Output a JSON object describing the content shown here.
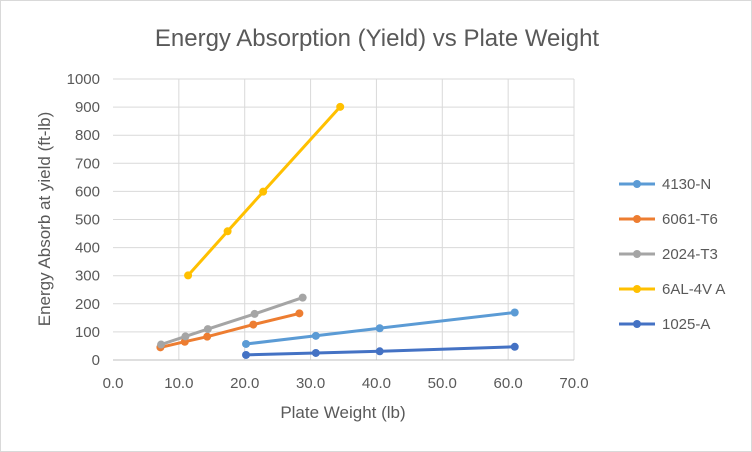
{
  "chart_data": {
    "type": "line",
    "title": "Energy Absorption (Yield) vs Plate Weight",
    "xlabel": "Plate Weight (lb)",
    "ylabel": "Energy Absorb at yield (ft-lb)",
    "xlim": [
      0,
      70
    ],
    "ylim": [
      0,
      1000
    ],
    "x_ticks": [
      0,
      10,
      20,
      30,
      40,
      50,
      60,
      70
    ],
    "x_tick_labels": [
      "0.0",
      "10.0",
      "20.0",
      "30.0",
      "40.0",
      "50.0",
      "60.0",
      "70.0"
    ],
    "y_ticks": [
      0,
      100,
      200,
      300,
      400,
      500,
      600,
      700,
      800,
      900,
      1000
    ],
    "y_tick_labels": [
      "0",
      "100",
      "200",
      "300",
      "400",
      "500",
      "600",
      "700",
      "800",
      "900",
      "1000"
    ],
    "grid": true,
    "legend_position": "right",
    "series": [
      {
        "name": "4130-N",
        "color": "#5b9bd5",
        "x": [
          20.2,
          30.8,
          40.5,
          61.0
        ],
        "y": [
          57,
          86,
          113,
          169
        ]
      },
      {
        "name": "6061-T6",
        "color": "#ed7d31",
        "x": [
          7.2,
          10.9,
          14.3,
          21.3,
          28.3
        ],
        "y": [
          45,
          65,
          83,
          126,
          166
        ]
      },
      {
        "name": "2024-T3",
        "color": "#a5a5a5",
        "x": [
          7.3,
          11.0,
          14.4,
          21.5,
          28.8
        ],
        "y": [
          55,
          84,
          110,
          164,
          222
        ]
      },
      {
        "name": "6AL-4V A",
        "color": "#ffc000",
        "x": [
          11.4,
          17.4,
          22.8,
          34.5
        ],
        "y": [
          301,
          458,
          599,
          901
        ]
      },
      {
        "name": "1025-A",
        "color": "#4472c4",
        "x": [
          20.2,
          30.8,
          40.5,
          61.0
        ],
        "y": [
          18,
          25,
          31,
          47
        ]
      }
    ]
  }
}
